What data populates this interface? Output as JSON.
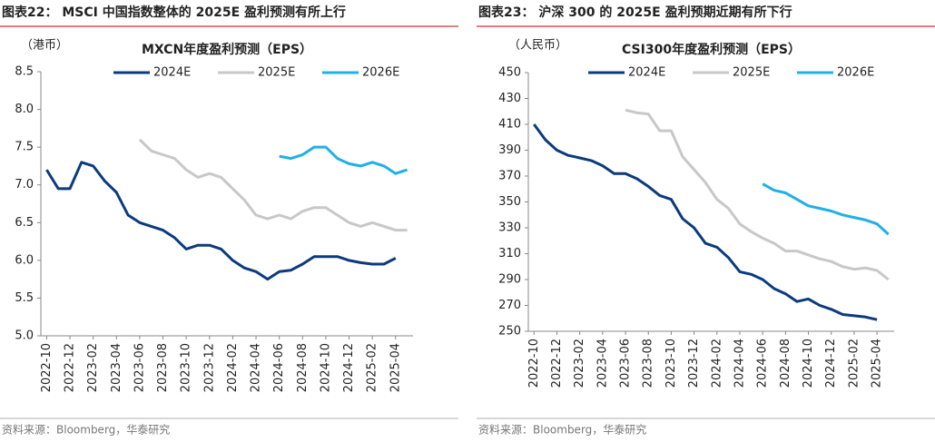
{
  "chart_data": [
    {
      "type": "line",
      "figure_title": "图表22：  MSCI 中国指数整体的 2025E 盈利预测有所上行",
      "title": "MXCN年度盈利预测（EPS）",
      "y_unit": "（港币）",
      "source": "资料来源：Bloomberg，华泰研究",
      "categories": [
        "2022-10",
        null,
        "2022-12",
        null,
        "2023-02",
        null,
        "2023-04",
        null,
        "2023-06",
        null,
        "2023-08",
        null,
        "2023-10",
        null,
        "2023-12",
        null,
        "2024-02",
        null,
        "2024-04",
        null,
        "2024-06",
        null,
        "2024-08",
        null,
        "2024-10",
        null,
        "2024-12",
        null,
        "2025-02",
        null,
        "2025-04",
        null
      ],
      "series": [
        {
          "name": "2024E",
          "color": "#0b3a7e",
          "values": [
            7.2,
            6.95,
            6.95,
            7.3,
            7.25,
            7.05,
            6.9,
            6.6,
            6.5,
            6.45,
            6.4,
            6.3,
            6.15,
            6.2,
            6.2,
            6.15,
            6.0,
            5.9,
            5.85,
            5.75,
            5.85,
            5.87,
            5.95,
            6.05,
            6.05,
            6.05,
            6.0,
            5.97,
            5.95,
            5.95,
            6.03,
            null
          ]
        },
        {
          "name": "2025E",
          "color": "#c8c8c8",
          "values": [
            null,
            null,
            null,
            null,
            null,
            null,
            null,
            null,
            7.6,
            7.45,
            7.4,
            7.35,
            7.2,
            7.1,
            7.15,
            7.1,
            6.95,
            6.8,
            6.6,
            6.55,
            6.6,
            6.55,
            6.65,
            6.7,
            6.7,
            6.6,
            6.5,
            6.45,
            6.5,
            6.45,
            6.4,
            6.4
          ]
        },
        {
          "name": "2026E",
          "color": "#1fb0e6",
          "values": [
            null,
            null,
            null,
            null,
            null,
            null,
            null,
            null,
            null,
            null,
            null,
            null,
            null,
            null,
            null,
            null,
            null,
            null,
            null,
            null,
            7.38,
            7.35,
            7.4,
            7.5,
            7.5,
            7.35,
            7.28,
            7.25,
            7.3,
            7.25,
            7.15,
            7.2
          ]
        }
      ],
      "ylim": [
        5,
        8.5
      ],
      "yticks": [
        {
          "value": 5,
          "label": "5.0"
        },
        5.5,
        {
          "value": 6,
          "label": "6.0"
        },
        6.5,
        {
          "value": 7,
          "label": "7.0"
        },
        7.5,
        {
          "value": 8,
          "label": "8.0"
        },
        8.5
      ]
    },
    {
      "type": "line",
      "figure_title": "图表23：  沪深 300 的 2025E 盈利预期近期有所下行",
      "title": "CSI300年度盈利预测（EPS）",
      "y_unit": "（人民币）",
      "source": "资料来源：Bloomberg，华泰研究",
      "categories": [
        "2022-10",
        null,
        "2022-12",
        null,
        "2023-02",
        null,
        "2023-04",
        null,
        "2023-06",
        null,
        "2023-08",
        null,
        "2023-10",
        null,
        "2023-12",
        null,
        "2024-02",
        null,
        "2024-04",
        null,
        "2024-06",
        null,
        "2024-08",
        null,
        "2024-10",
        null,
        "2024-12",
        null,
        "2025-02",
        null,
        "2025-04",
        null
      ],
      "series": [
        {
          "name": "2024E",
          "color": "#0b3a7e",
          "values": [
            410,
            398,
            390,
            386,
            384,
            382,
            378,
            372,
            372,
            368,
            362,
            355,
            352,
            337,
            330,
            318,
            315,
            307,
            296,
            294,
            290,
            283,
            279,
            273,
            275,
            270,
            267,
            263,
            262,
            261,
            259,
            null
          ]
        },
        {
          "name": "2025E",
          "color": "#c8c8c8",
          "values": [
            null,
            null,
            null,
            null,
            null,
            null,
            null,
            null,
            421,
            419,
            418,
            405,
            405,
            385,
            375,
            365,
            352,
            345,
            333,
            327,
            322,
            318,
            312,
            312,
            309,
            306,
            304,
            300,
            298,
            299,
            297,
            290
          ]
        },
        {
          "name": "2026E",
          "color": "#1fb0e6",
          "values": [
            null,
            null,
            null,
            null,
            null,
            null,
            null,
            null,
            null,
            null,
            null,
            null,
            null,
            null,
            null,
            null,
            null,
            null,
            null,
            null,
            364,
            359,
            357,
            352,
            347,
            345,
            343,
            340,
            338,
            336,
            333,
            325
          ]
        }
      ],
      "ylim": [
        250,
        450
      ],
      "yticks": [
        250,
        270,
        290,
        310,
        330,
        350,
        370,
        390,
        410,
        430,
        450
      ]
    }
  ]
}
